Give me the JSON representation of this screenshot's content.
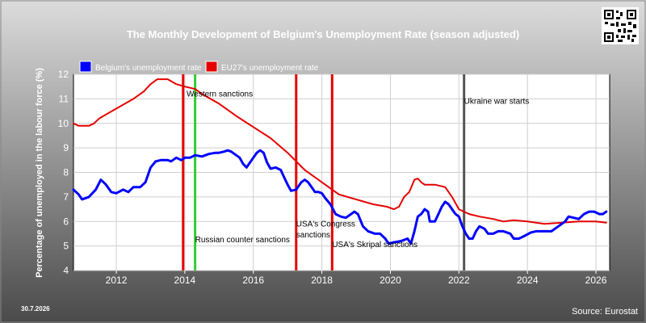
{
  "chart_data": {
    "type": "line",
    "title": "The Monthly Development of Belgium's Unemployment Rate (season adjusted)",
    "ylabel": "Percentage of unemployed in the labour force (%)",
    "xlabel": "",
    "xlim": [
      2010.75,
      2026.4
    ],
    "ylim": [
      4,
      12
    ],
    "yticks": [
      "4",
      "5",
      "6",
      "7",
      "8",
      "9",
      "10",
      "11",
      "12"
    ],
    "xticks": [
      "2012",
      "2014",
      "2016",
      "2018",
      "2020",
      "2022",
      "2024",
      "2026"
    ],
    "grid": true,
    "legend_position": "top-left",
    "series": [
      {
        "name": "Belgium's unemployment rate",
        "color": "#0000ff",
        "points": [
          [
            2010.75,
            7.3
          ],
          [
            2010.9,
            7.1
          ],
          [
            2011.0,
            6.9
          ],
          [
            2011.2,
            7.0
          ],
          [
            2011.4,
            7.3
          ],
          [
            2011.55,
            7.7
          ],
          [
            2011.7,
            7.5
          ],
          [
            2011.85,
            7.2
          ],
          [
            2012.0,
            7.15
          ],
          [
            2012.2,
            7.3
          ],
          [
            2012.35,
            7.2
          ],
          [
            2012.5,
            7.4
          ],
          [
            2012.7,
            7.4
          ],
          [
            2012.85,
            7.6
          ],
          [
            2013.0,
            8.2
          ],
          [
            2013.15,
            8.45
          ],
          [
            2013.3,
            8.5
          ],
          [
            2013.5,
            8.5
          ],
          [
            2013.6,
            8.45
          ],
          [
            2013.75,
            8.6
          ],
          [
            2013.9,
            8.5
          ],
          [
            2014.0,
            8.6
          ],
          [
            2014.15,
            8.6
          ],
          [
            2014.3,
            8.7
          ],
          [
            2014.5,
            8.65
          ],
          [
            2014.7,
            8.75
          ],
          [
            2014.9,
            8.8
          ],
          [
            2015.0,
            8.8
          ],
          [
            2015.15,
            8.85
          ],
          [
            2015.25,
            8.9
          ],
          [
            2015.35,
            8.85
          ],
          [
            2015.5,
            8.7
          ],
          [
            2015.6,
            8.6
          ],
          [
            2015.7,
            8.35
          ],
          [
            2015.8,
            8.2
          ],
          [
            2015.95,
            8.5
          ],
          [
            2016.1,
            8.8
          ],
          [
            2016.2,
            8.9
          ],
          [
            2016.3,
            8.8
          ],
          [
            2016.4,
            8.4
          ],
          [
            2016.5,
            8.15
          ],
          [
            2016.65,
            8.2
          ],
          [
            2016.8,
            8.1
          ],
          [
            2016.9,
            7.8
          ],
          [
            2017.0,
            7.5
          ],
          [
            2017.1,
            7.25
          ],
          [
            2017.25,
            7.3
          ],
          [
            2017.4,
            7.6
          ],
          [
            2017.5,
            7.7
          ],
          [
            2017.6,
            7.6
          ],
          [
            2017.7,
            7.4
          ],
          [
            2017.8,
            7.2
          ],
          [
            2017.9,
            7.2
          ],
          [
            2018.0,
            7.15
          ],
          [
            2018.1,
            6.95
          ],
          [
            2018.25,
            6.7
          ],
          [
            2018.4,
            6.3
          ],
          [
            2018.55,
            6.2
          ],
          [
            2018.7,
            6.15
          ],
          [
            2018.85,
            6.3
          ],
          [
            2018.95,
            6.4
          ],
          [
            2019.05,
            6.3
          ],
          [
            2019.2,
            5.8
          ],
          [
            2019.35,
            5.6
          ],
          [
            2019.55,
            5.5
          ],
          [
            2019.7,
            5.5
          ],
          [
            2019.85,
            5.3
          ],
          [
            2019.95,
            5.1
          ],
          [
            2020.1,
            5.15
          ],
          [
            2020.3,
            5.2
          ],
          [
            2020.5,
            5.3
          ],
          [
            2020.6,
            5.1
          ],
          [
            2020.7,
            5.6
          ],
          [
            2020.8,
            6.2
          ],
          [
            2020.9,
            6.3
          ],
          [
            2021.0,
            6.5
          ],
          [
            2021.1,
            6.4
          ],
          [
            2021.15,
            6.0
          ],
          [
            2021.3,
            6.0
          ],
          [
            2021.4,
            6.3
          ],
          [
            2021.5,
            6.6
          ],
          [
            2021.6,
            6.8
          ],
          [
            2021.7,
            6.7
          ],
          [
            2021.8,
            6.5
          ],
          [
            2021.9,
            6.3
          ],
          [
            2022.0,
            6.2
          ],
          [
            2022.1,
            5.8
          ],
          [
            2022.2,
            5.5
          ],
          [
            2022.3,
            5.3
          ],
          [
            2022.4,
            5.3
          ],
          [
            2022.5,
            5.6
          ],
          [
            2022.6,
            5.8
          ],
          [
            2022.75,
            5.7
          ],
          [
            2022.85,
            5.5
          ],
          [
            2023.0,
            5.5
          ],
          [
            2023.15,
            5.6
          ],
          [
            2023.3,
            5.6
          ],
          [
            2023.5,
            5.5
          ],
          [
            2023.6,
            5.3
          ],
          [
            2023.75,
            5.3
          ],
          [
            2023.9,
            5.4
          ],
          [
            2024.1,
            5.55
          ],
          [
            2024.25,
            5.6
          ],
          [
            2024.5,
            5.6
          ],
          [
            2024.7,
            5.6
          ],
          [
            2024.9,
            5.8
          ],
          [
            2025.1,
            6.0
          ],
          [
            2025.2,
            6.2
          ],
          [
            2025.35,
            6.15
          ],
          [
            2025.5,
            6.1
          ],
          [
            2025.65,
            6.3
          ],
          [
            2025.8,
            6.4
          ],
          [
            2025.95,
            6.4
          ],
          [
            2026.1,
            6.3
          ],
          [
            2026.2,
            6.3
          ],
          [
            2026.3,
            6.4
          ]
        ]
      },
      {
        "name": "EU27's unemployment rate",
        "color": "#e60000",
        "points": [
          [
            2010.75,
            10.0
          ],
          [
            2010.9,
            9.9
          ],
          [
            2011.2,
            9.9
          ],
          [
            2011.35,
            10.0
          ],
          [
            2011.5,
            10.2
          ],
          [
            2012.0,
            10.6
          ],
          [
            2012.5,
            11.0
          ],
          [
            2012.8,
            11.3
          ],
          [
            2013.0,
            11.6
          ],
          [
            2013.2,
            11.8
          ],
          [
            2013.5,
            11.8
          ],
          [
            2013.75,
            11.6
          ],
          [
            2014.0,
            11.5
          ],
          [
            2014.3,
            11.4
          ],
          [
            2014.5,
            11.2
          ],
          [
            2014.75,
            11.0
          ],
          [
            2015.0,
            10.8
          ],
          [
            2015.5,
            10.3
          ],
          [
            2016.0,
            9.85
          ],
          [
            2016.5,
            9.4
          ],
          [
            2017.0,
            8.8
          ],
          [
            2017.5,
            8.1
          ],
          [
            2018.0,
            7.6
          ],
          [
            2018.5,
            7.1
          ],
          [
            2019.0,
            6.9
          ],
          [
            2019.5,
            6.7
          ],
          [
            2019.9,
            6.6
          ],
          [
            2020.1,
            6.5
          ],
          [
            2020.25,
            6.6
          ],
          [
            2020.4,
            7.0
          ],
          [
            2020.55,
            7.2
          ],
          [
            2020.7,
            7.7
          ],
          [
            2020.8,
            7.75
          ],
          [
            2020.9,
            7.6
          ],
          [
            2021.0,
            7.5
          ],
          [
            2021.3,
            7.5
          ],
          [
            2021.6,
            7.4
          ],
          [
            2021.8,
            7.0
          ],
          [
            2022.0,
            6.5
          ],
          [
            2022.3,
            6.3
          ],
          [
            2022.6,
            6.2
          ],
          [
            2023.0,
            6.1
          ],
          [
            2023.3,
            6.0
          ],
          [
            2023.6,
            6.05
          ],
          [
            2024.0,
            6.0
          ],
          [
            2024.5,
            5.9
          ],
          [
            2025.0,
            5.95
          ],
          [
            2025.5,
            6.0
          ],
          [
            2026.0,
            6.0
          ],
          [
            2026.3,
            5.95
          ]
        ]
      }
    ],
    "annotations": [
      {
        "label": "Western sanctions",
        "x": 2014.05,
        "y": 11.1,
        "line_color": "",
        "line_x": null
      },
      {
        "label": "Russian counter sanctions",
        "x": 2014.3,
        "y": 5.15,
        "line_color": "#33cc33",
        "line_x": 2014.3
      },
      {
        "label": "",
        "x": null,
        "y": null,
        "line_color": "#e60000",
        "line_x": 2013.95
      },
      {
        "label": "USA's Congress",
        "x": 2017.25,
        "y": 5.8,
        "line_color": "#e60000",
        "line_x": 2017.25
      },
      {
        "label": "sanctions",
        "x": 2017.25,
        "y": 5.35,
        "line_color": "",
        "line_x": null
      },
      {
        "label": "USA's Skripal sanctions",
        "x": 2018.3,
        "y": 4.95,
        "line_color": "#e60000",
        "line_x": 2018.3
      },
      {
        "label": "Ukraine war starts",
        "x": 2022.15,
        "y": 10.8,
        "line_color": "#555555",
        "line_x": 2022.15
      }
    ]
  },
  "footer": {
    "date": "30.7.2026",
    "source": "Source: Eurostat"
  },
  "qr_icon": "qr-code-icon"
}
